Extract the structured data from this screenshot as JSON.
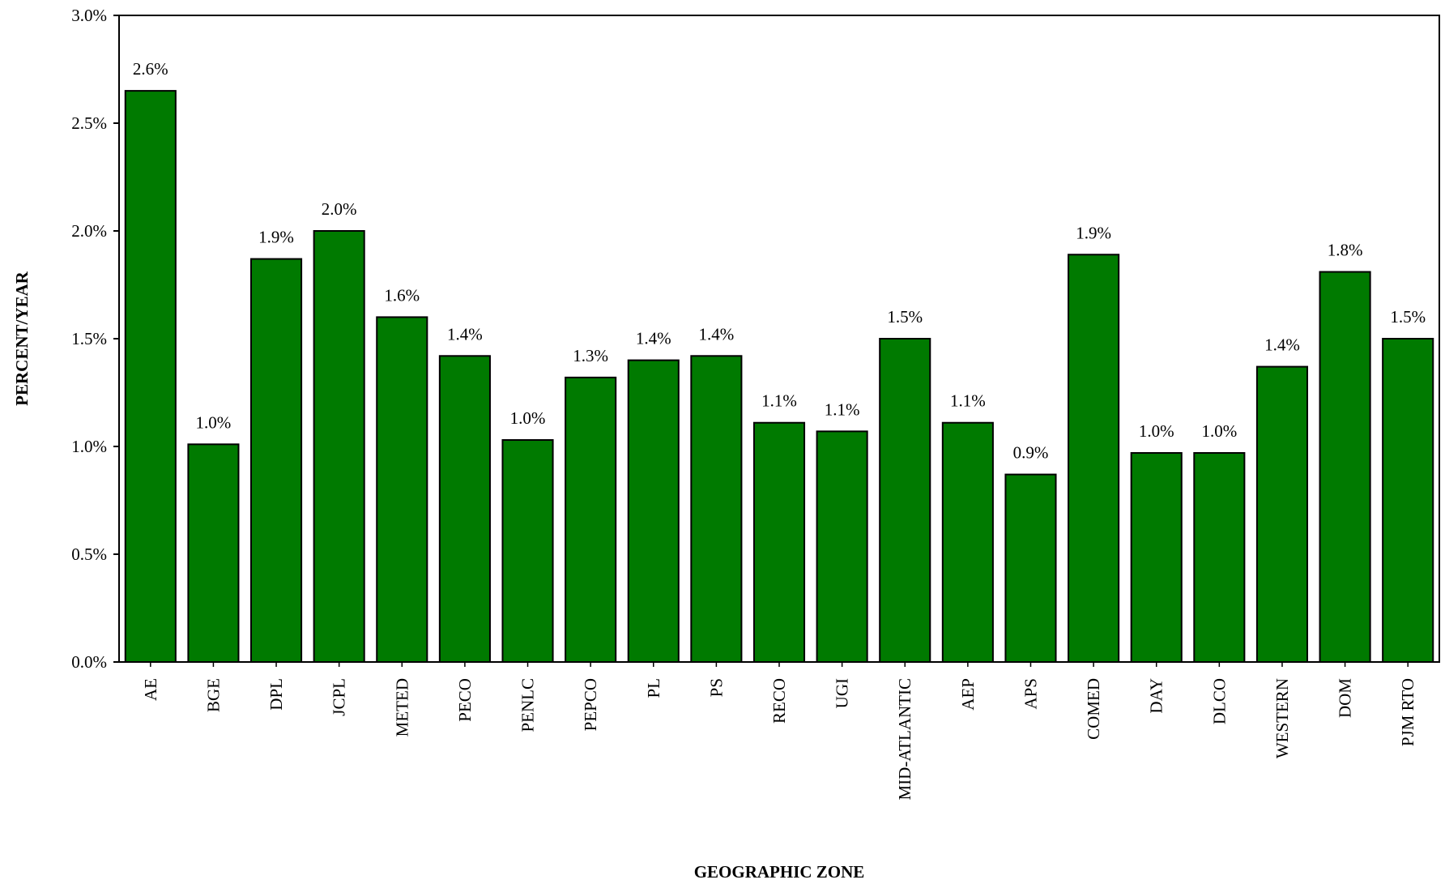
{
  "chart_data": {
    "type": "bar",
    "xlabel": "GEOGRAPHIC ZONE",
    "ylabel": "PERCENT/YEAR",
    "ylim": [
      0,
      3.0
    ],
    "yticks": [
      "0.0%",
      "0.5%",
      "1.0%",
      "1.5%",
      "2.0%",
      "2.5%",
      "3.0%"
    ],
    "grid": false,
    "bar_color": "#007a00",
    "categories": [
      "AE",
      "BGE",
      "DPL",
      "JCPL",
      "METED",
      "PECO",
      "PENLC",
      "PEPCO",
      "PL",
      "PS",
      "RECO",
      "UGI",
      "MID-ATLANTIC",
      "AEP",
      "APS",
      "COMED",
      "DAY",
      "DLCO",
      "WESTERN",
      "DOM",
      "PJM RTO"
    ],
    "values": [
      2.65,
      1.01,
      1.87,
      2.0,
      1.6,
      1.42,
      1.03,
      1.32,
      1.4,
      1.42,
      1.11,
      1.07,
      1.5,
      1.11,
      0.87,
      1.89,
      0.97,
      0.97,
      1.37,
      1.81,
      1.5
    ],
    "data_labels": [
      "2.6%",
      "1.0%",
      "1.9%",
      "2.0%",
      "1.6%",
      "1.4%",
      "1.0%",
      "1.3%",
      "1.4%",
      "1.4%",
      "1.1%",
      "1.1%",
      "1.5%",
      "1.1%",
      "0.9%",
      "1.9%",
      "1.0%",
      "1.0%",
      "1.4%",
      "1.8%",
      "1.5%"
    ]
  }
}
